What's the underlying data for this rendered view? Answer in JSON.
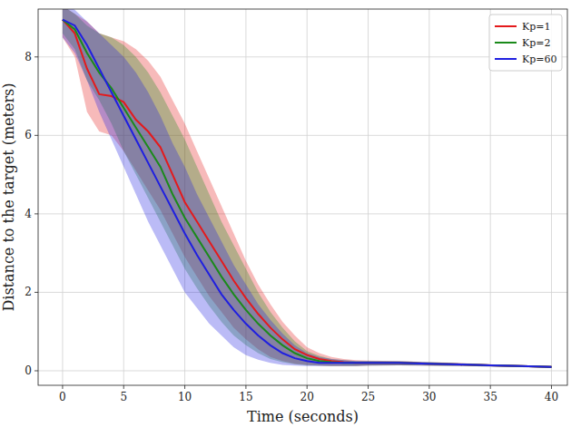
{
  "chart_data": {
    "type": "line",
    "x_label": "Time (seconds)",
    "y_label": "Distance to the target (meters)",
    "x": [
      0,
      1,
      2,
      3,
      4,
      5,
      6,
      7,
      8,
      9,
      10,
      11,
      12,
      13,
      14,
      15,
      16,
      17,
      18,
      19,
      20,
      21,
      22,
      23,
      24,
      25,
      27.5,
      30,
      32.5,
      35,
      37.5,
      40
    ],
    "series": [
      {
        "name": "Kp=1",
        "color": "#e41a1c",
        "values": [
          8.95,
          8.6,
          7.7,
          7.05,
          7.0,
          6.85,
          6.4,
          6.1,
          5.7,
          5.0,
          4.3,
          3.8,
          3.3,
          2.8,
          2.3,
          1.85,
          1.45,
          1.1,
          0.8,
          0.55,
          0.4,
          0.3,
          0.25,
          0.22,
          0.2,
          0.2,
          0.2,
          0.18,
          0.16,
          0.14,
          0.12,
          0.1
        ],
        "lower": [
          8.5,
          8.0,
          6.6,
          6.1,
          6.0,
          5.6,
          5.1,
          4.6,
          4.1,
          3.5,
          2.9,
          2.4,
          1.9,
          1.5,
          1.1,
          0.8,
          0.55,
          0.35,
          0.25,
          0.18,
          0.15,
          0.13,
          0.12,
          0.12,
          0.12,
          0.13,
          0.14,
          0.13,
          0.12,
          0.11,
          0.09,
          0.08
        ],
        "upper": [
          9.3,
          9.1,
          8.9,
          8.6,
          8.5,
          8.4,
          8.2,
          7.9,
          7.5,
          6.9,
          6.3,
          5.6,
          4.9,
          4.2,
          3.5,
          2.8,
          2.2,
          1.7,
          1.25,
          0.9,
          0.6,
          0.45,
          0.35,
          0.3,
          0.27,
          0.26,
          0.25,
          0.22,
          0.2,
          0.17,
          0.14,
          0.12
        ]
      },
      {
        "name": "Kp=2",
        "color": "#1a8a1a",
        "values": [
          8.95,
          8.7,
          8.1,
          7.6,
          7.2,
          6.7,
          6.2,
          5.7,
          5.2,
          4.5,
          3.9,
          3.4,
          2.9,
          2.4,
          1.95,
          1.55,
          1.2,
          0.9,
          0.65,
          0.45,
          0.32,
          0.25,
          0.22,
          0.2,
          0.2,
          0.2,
          0.2,
          0.18,
          0.16,
          0.14,
          0.12,
          0.1
        ],
        "lower": [
          8.6,
          8.2,
          7.4,
          6.9,
          6.3,
          5.6,
          5.0,
          4.4,
          3.8,
          3.2,
          2.6,
          2.1,
          1.65,
          1.25,
          0.9,
          0.65,
          0.45,
          0.3,
          0.22,
          0.17,
          0.14,
          0.13,
          0.12,
          0.12,
          0.12,
          0.13,
          0.14,
          0.13,
          0.12,
          0.11,
          0.09,
          0.08
        ],
        "upper": [
          9.3,
          9.1,
          8.8,
          8.6,
          8.5,
          8.3,
          8.0,
          7.6,
          7.1,
          6.5,
          5.9,
          5.2,
          4.5,
          3.8,
          3.2,
          2.6,
          2.0,
          1.5,
          1.1,
          0.75,
          0.5,
          0.38,
          0.3,
          0.27,
          0.25,
          0.25,
          0.24,
          0.22,
          0.19,
          0.16,
          0.14,
          0.12
        ]
      },
      {
        "name": "Kp=60",
        "color": "#1f1fe0",
        "values": [
          8.95,
          8.8,
          8.3,
          7.7,
          7.1,
          6.5,
          5.9,
          5.3,
          4.7,
          4.1,
          3.5,
          2.95,
          2.45,
          1.95,
          1.55,
          1.2,
          0.9,
          0.65,
          0.45,
          0.32,
          0.25,
          0.2,
          0.2,
          0.2,
          0.2,
          0.2,
          0.2,
          0.18,
          0.16,
          0.14,
          0.12,
          0.1
        ],
        "lower": [
          8.5,
          8.1,
          7.4,
          6.6,
          5.9,
          5.2,
          4.5,
          3.8,
          3.2,
          2.6,
          2.0,
          1.6,
          1.2,
          0.9,
          0.6,
          0.4,
          0.28,
          0.2,
          0.15,
          0.13,
          0.12,
          0.12,
          0.12,
          0.12,
          0.12,
          0.13,
          0.14,
          0.13,
          0.12,
          0.11,
          0.09,
          0.08
        ],
        "upper": [
          9.4,
          9.2,
          8.9,
          8.6,
          8.3,
          8.0,
          7.6,
          7.1,
          6.5,
          5.8,
          5.2,
          4.5,
          3.9,
          3.3,
          2.7,
          2.2,
          1.7,
          1.3,
          0.95,
          0.65,
          0.45,
          0.35,
          0.3,
          0.27,
          0.25,
          0.25,
          0.24,
          0.22,
          0.19,
          0.16,
          0.14,
          0.12
        ]
      }
    ],
    "xlim": [
      -2,
      41.3
    ],
    "ylim": [
      -0.37,
      9.22
    ],
    "xticks": [
      0,
      5,
      10,
      15,
      20,
      25,
      30,
      35,
      40
    ],
    "yticks": [
      0,
      2,
      4,
      6,
      8
    ],
    "grid": true,
    "legend": "upper right"
  }
}
